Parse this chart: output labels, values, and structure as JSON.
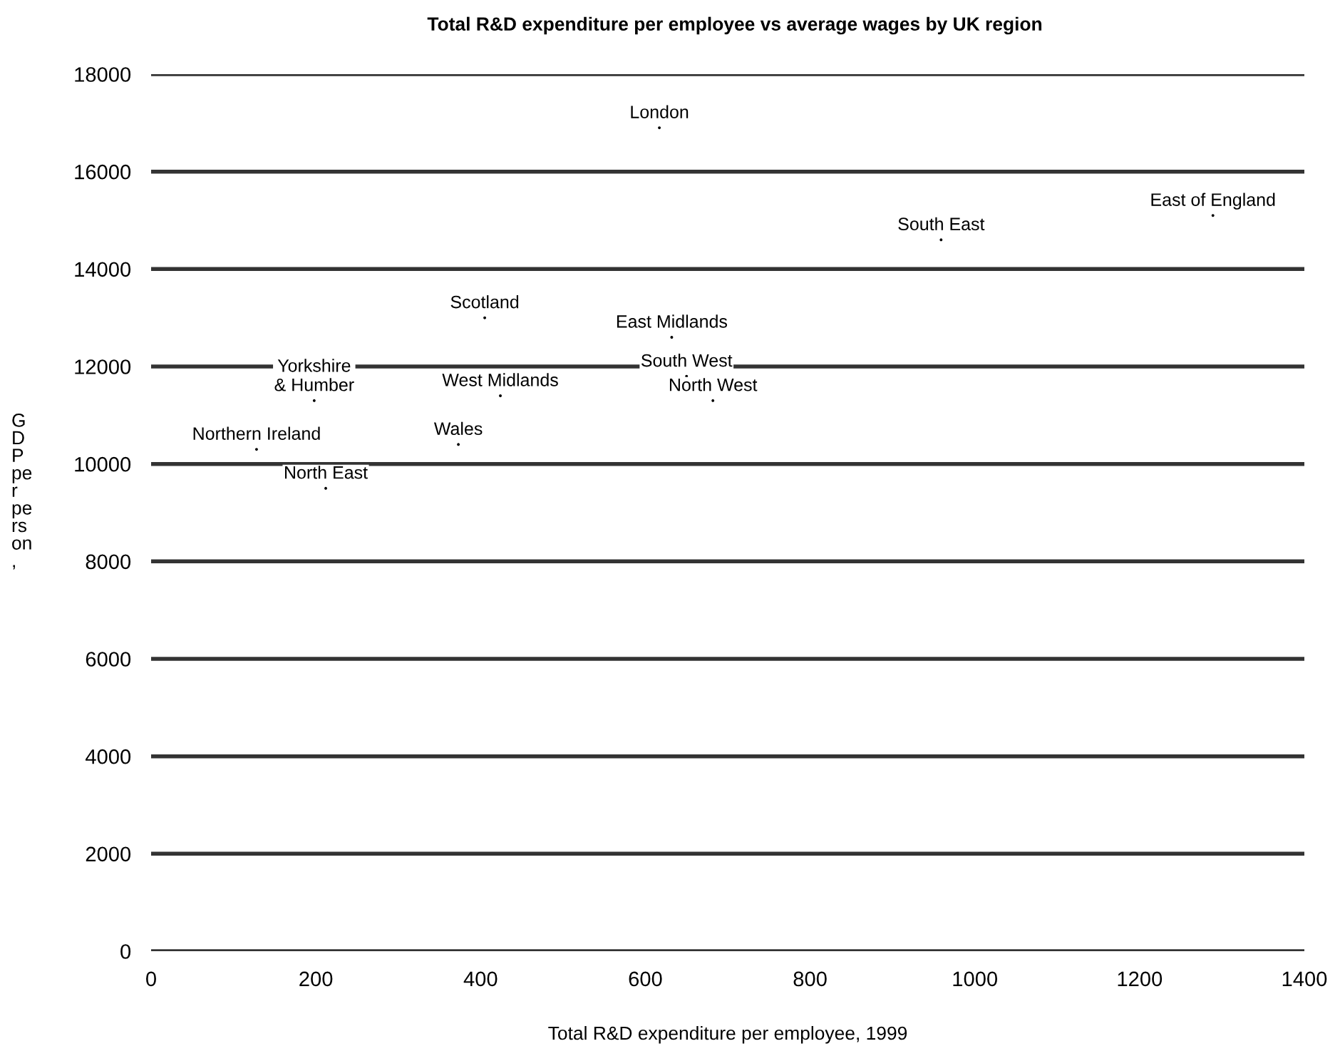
{
  "chart_data": {
    "type": "scatter",
    "title": "Total R&D expenditure per employee vs average wages by UK region",
    "xlabel": "Total R&D expenditure per employee, 1999",
    "ylabel": "GDP per person,",
    "x": [
      617,
      959,
      1289,
      405,
      632,
      198,
      424,
      650,
      682,
      128,
      373,
      212
    ],
    "series": [
      {
        "values": [
          16900,
          14600,
          15100,
          13000,
          12600,
          11300,
          11400,
          11800,
          11300,
          10300,
          10400,
          9500
        ],
        "color": "#000000"
      }
    ],
    "marker": "none",
    "annotations": [
      {
        "text": "London",
        "x": 617,
        "y": 16900
      },
      {
        "text": "South East",
        "x": 959,
        "y": 14600
      },
      {
        "text": "East of England",
        "x": 1289,
        "y": 15100
      },
      {
        "text": "Scotland",
        "x": 405,
        "y": 13000
      },
      {
        "text": "East Midlands",
        "x": 632,
        "y": 12600
      },
      {
        "text": "Yorkshire\n& Humber",
        "x": 198,
        "y": 11300
      },
      {
        "text": "West Midlands",
        "x": 424,
        "y": 11400
      },
      {
        "text": "South West",
        "x": 650,
        "y": 11800
      },
      {
        "text": "North West",
        "x": 682,
        "y": 11300
      },
      {
        "text": "Northern Ireland",
        "x": 128,
        "y": 10300
      },
      {
        "text": "Wales",
        "x": 373,
        "y": 10400
      },
      {
        "text": "North East",
        "x": 212,
        "y": 9500
      }
    ],
    "xlim": [
      0,
      1400
    ],
    "xticks": [
      0,
      200,
      400,
      600,
      800,
      1000,
      1200,
      1400
    ],
    "ylim": [
      0,
      18000
    ],
    "yticks": [
      0,
      2000,
      4000,
      6000,
      8000,
      10000,
      12000,
      14000,
      16000,
      18000
    ],
    "grid": "y"
  }
}
